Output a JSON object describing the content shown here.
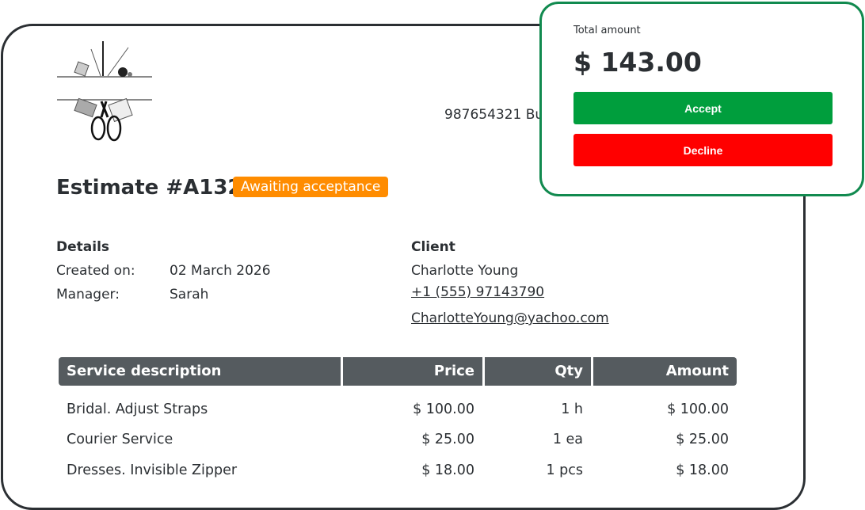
{
  "business": {
    "address": "987654321 Bu"
  },
  "estimate": {
    "title": "Estimate #A132",
    "status": "Awaiting acceptance",
    "status_color": "#ff8c00"
  },
  "details": {
    "heading": "Details",
    "created_label": "Created on:",
    "created_value": "02 March 2026",
    "manager_label": "Manager:",
    "manager_value": "Sarah"
  },
  "client": {
    "heading": "Client",
    "name": "Charlotte Young",
    "phone": "+1 (555) 97143790",
    "email": "CharlotteYoung@yachoo.com"
  },
  "table": {
    "headers": [
      "Service description",
      "Price",
      "Qty",
      "Amount"
    ],
    "rows": [
      [
        "Bridal. Adjust Straps",
        "$ 100.00",
        "1 h",
        "$ 100.00"
      ],
      [
        "Courier Service",
        "$ 25.00",
        "1 ea",
        "$ 25.00"
      ],
      [
        "Dresses. Invisible Zipper",
        "$ 18.00",
        "1 pcs",
        "$ 18.00"
      ]
    ]
  },
  "summary": {
    "label": "Total amount",
    "total": "$ 143.00",
    "accept": "Accept",
    "decline": "Decline",
    "accept_color": "#009e3d",
    "decline_color": "#ff0000",
    "border_color": "#118a4f"
  }
}
